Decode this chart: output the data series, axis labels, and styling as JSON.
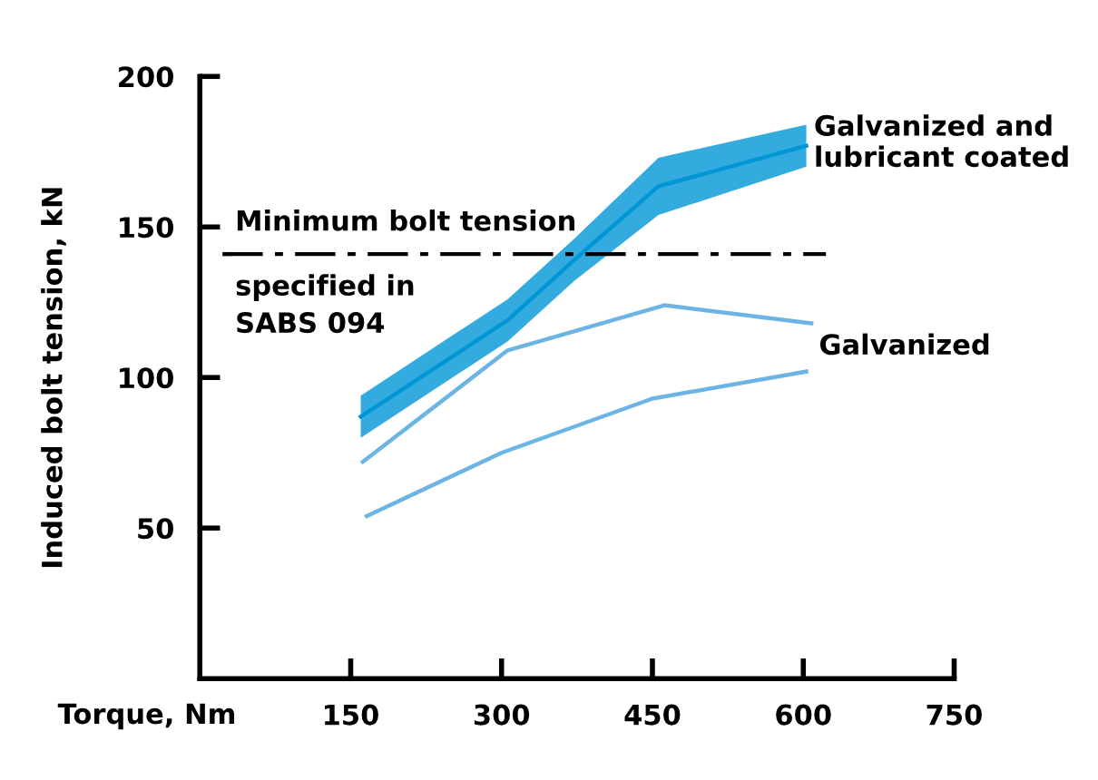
{
  "chart_data": {
    "type": "line",
    "xlabel": "Torque, Nm",
    "ylabel": "Induced bolt tension, kN",
    "xlim": [
      0,
      750
    ],
    "xticks": [
      150,
      300,
      450,
      600,
      750
    ],
    "ylim": [
      0,
      200
    ],
    "yticks": [
      50,
      100,
      150,
      200
    ],
    "grid": false,
    "legend": false,
    "marker": "none",
    "line_style": "solid",
    "series": [
      {
        "name": "Galvanized and lubricant coated",
        "type": "line",
        "color": "#0096d6",
        "x": [
          160,
          306,
          372,
          456,
          603
        ],
        "values": [
          87,
          119,
          139,
          163.5,
          177
        ],
        "lower": [
          80,
          112,
          132,
          154,
          170
        ],
        "upper": [
          94,
          126,
          146,
          173,
          184
        ]
      },
      {
        "name": "Galvanized",
        "color": "#6cb4e4",
        "x": [
          162,
          306,
          462,
          608
        ],
        "values": [
          72,
          109,
          124,
          118
        ]
      },
      {
        "color": "#6cb4e4",
        "x": [
          166,
          300,
          450,
          603
        ],
        "values": [
          54,
          75,
          93,
          102
        ]
      }
    ],
    "ref_lines": [
      {
        "axis": "y",
        "value": 141,
        "label": "Minimum bolt tension\nspecified in\nSABS 094",
        "color": "#000000",
        "line_style": "dashdot"
      }
    ]
  }
}
